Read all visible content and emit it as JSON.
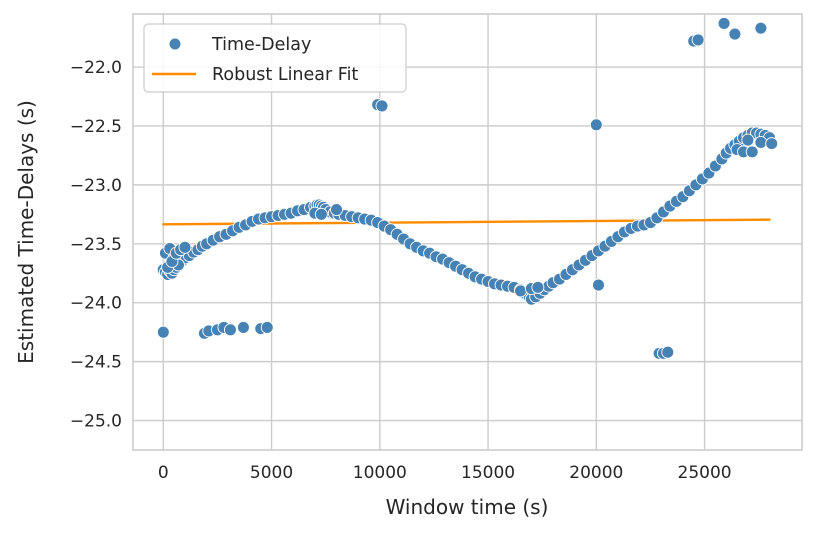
{
  "chart_data": {
    "type": "scatter",
    "title": "",
    "xlabel": "Window time (s)",
    "ylabel": "Estimated Time-Delays (s)",
    "xlim": [
      -1400,
      29500
    ],
    "ylim": [
      -25.25,
      -21.55
    ],
    "xticks": [
      0,
      5000,
      10000,
      15000,
      20000,
      25000
    ],
    "yticks": [
      -25.0,
      -24.5,
      -24.0,
      -23.5,
      -23.0,
      -22.5,
      -22.0
    ],
    "grid": true,
    "legend": "upper-left",
    "colors": {
      "scatter": "#4682b4",
      "fit": "#ff8c00",
      "grid": "#cccccc"
    },
    "series": [
      {
        "name": "Time-Delay",
        "kind": "scatter",
        "x": [
          0,
          100,
          200,
          300,
          400,
          500,
          600,
          700,
          800,
          900,
          1000,
          1200,
          1400,
          1600,
          1800,
          2000,
          2300,
          2600,
          2900,
          3200,
          3500,
          3800,
          4100,
          4400,
          4700,
          5000,
          5300,
          5600,
          5900,
          6200,
          6500,
          6800,
          7000,
          7100,
          7200,
          7300,
          7400,
          7500,
          7700,
          7900,
          8100,
          8400,
          8700,
          9000,
          9300,
          9600,
          9900,
          10200,
          10500,
          10800,
          11100,
          11400,
          11700,
          12000,
          12300,
          12600,
          12900,
          13200,
          13500,
          13800,
          14100,
          14400,
          14700,
          15000,
          15300,
          15600,
          15900,
          16200,
          16500,
          16700,
          16900,
          17000,
          17200,
          17400,
          17600,
          17800,
          18000,
          18300,
          18600,
          18900,
          19200,
          19500,
          19800,
          20100,
          20400,
          20700,
          21000,
          21300,
          21600,
          21900,
          22200,
          22500,
          22800,
          23100,
          23400,
          23700,
          24000,
          24300,
          24600,
          24900,
          25200,
          25500,
          25800,
          26000,
          26200,
          26400,
          26600,
          26800,
          27000,
          27200,
          27400,
          27600,
          27800,
          28000,
          100,
          300,
          500,
          700,
          200,
          400,
          600,
          800,
          1000,
          7000,
          7300,
          8000,
          16500,
          17000,
          17300,
          26500,
          26800,
          27000,
          27200,
          27600,
          28100,
          0,
          1900,
          2100,
          2500,
          2800,
          3100,
          3700,
          4500,
          4800,
          9900,
          10100,
          20000,
          20100,
          22900,
          23100,
          23300,
          24500,
          24700,
          25900,
          26400,
          27600
        ],
        "y": [
          -23.72,
          -23.74,
          -23.76,
          -23.73,
          -23.75,
          -23.72,
          -23.7,
          -23.68,
          -23.66,
          -23.64,
          -23.62,
          -23.6,
          -23.57,
          -23.55,
          -23.52,
          -23.5,
          -23.47,
          -23.44,
          -23.42,
          -23.39,
          -23.36,
          -23.34,
          -23.31,
          -23.29,
          -23.28,
          -23.27,
          -23.26,
          -23.25,
          -23.24,
          -23.22,
          -23.21,
          -23.19,
          -23.18,
          -23.17,
          -23.17,
          -23.18,
          -23.19,
          -23.21,
          -23.23,
          -23.24,
          -23.25,
          -23.26,
          -23.27,
          -23.28,
          -23.29,
          -23.3,
          -23.32,
          -23.35,
          -23.38,
          -23.42,
          -23.46,
          -23.5,
          -23.53,
          -23.56,
          -23.58,
          -23.61,
          -23.63,
          -23.66,
          -23.69,
          -23.72,
          -23.75,
          -23.78,
          -23.8,
          -23.82,
          -23.84,
          -23.85,
          -23.86,
          -23.87,
          -23.89,
          -23.92,
          -23.95,
          -23.97,
          -23.95,
          -23.92,
          -23.89,
          -23.86,
          -23.83,
          -23.8,
          -23.76,
          -23.72,
          -23.68,
          -23.64,
          -23.6,
          -23.56,
          -23.52,
          -23.48,
          -23.44,
          -23.4,
          -23.37,
          -23.35,
          -23.34,
          -23.32,
          -23.28,
          -23.23,
          -23.18,
          -23.14,
          -23.1,
          -23.05,
          -23.0,
          -22.95,
          -22.9,
          -22.84,
          -22.78,
          -22.73,
          -22.69,
          -22.66,
          -22.63,
          -22.6,
          -22.58,
          -22.56,
          -22.56,
          -22.57,
          -22.58,
          -22.6,
          -23.58,
          -23.54,
          -23.62,
          -23.68,
          -23.7,
          -23.65,
          -23.58,
          -23.55,
          -23.53,
          -23.24,
          -23.25,
          -23.21,
          -23.9,
          -23.88,
          -23.87,
          -22.7,
          -22.72,
          -22.62,
          -22.72,
          -22.64,
          -22.65,
          -24.25,
          -24.26,
          -24.24,
          -24.23,
          -24.21,
          -24.23,
          -24.21,
          -24.22,
          -24.21,
          -22.32,
          -22.33,
          -22.49,
          -23.85,
          -24.43,
          -24.43,
          -24.42,
          -21.78,
          -21.77,
          -21.63,
          -21.72,
          -21.67
        ]
      },
      {
        "name": "Robust Linear Fit",
        "kind": "line",
        "x": [
          0,
          28000
        ],
        "y": [
          -23.335,
          -23.295
        ]
      }
    ]
  }
}
